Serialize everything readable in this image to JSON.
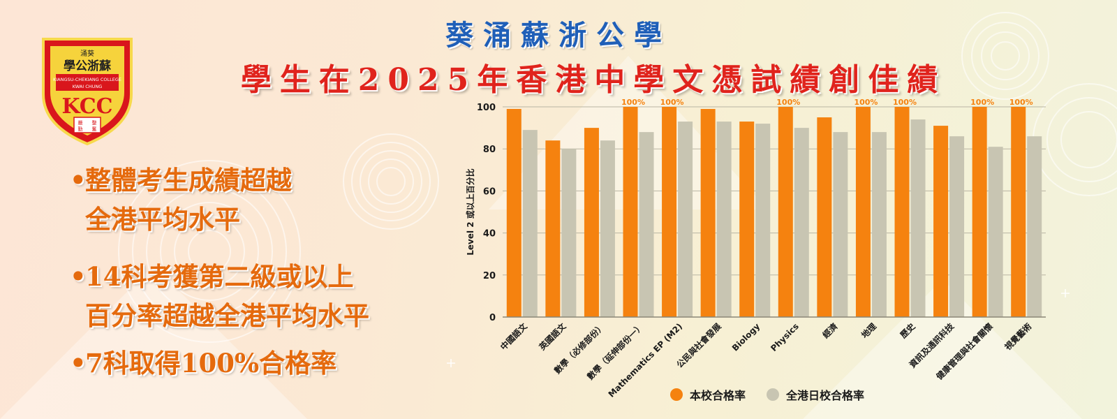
{
  "header": {
    "school_name": "葵涌蘇浙公學",
    "headline": "學生在2025年香港中學文憑試績創佳績"
  },
  "logo": {
    "top_text": "涌葵",
    "chinese_name": "學公浙蘇",
    "english_line1": "KIANGSU-CHEKIANG COLLEGE",
    "english_line2": "KWAI CHUNG",
    "initials": "KCC",
    "motto": [
      "嚴",
      "整",
      "勤",
      "奮"
    ]
  },
  "highlights": [
    {
      "lines": [
        "整體考生成績超越",
        "全港平均水平"
      ]
    },
    {
      "lines": [
        "14科考獲第二級或以上",
        "百分率超越全港平均水平"
      ]
    },
    {
      "lines": [
        "7科取得100%合格率"
      ]
    }
  ],
  "colors": {
    "school": "#f5820f",
    "hk": "#c8c5b2",
    "title_blue": "#1f5fb8",
    "title_red": "#e0231c",
    "bullet_orange": "#e56a0d"
  },
  "chart_data": {
    "type": "bar",
    "ylabel": "Level 2 或以上百分比",
    "ylim": [
      0,
      100
    ],
    "yticks": [
      0,
      20,
      40,
      60,
      80,
      100
    ],
    "grid": true,
    "legend_position": "bottom",
    "categories": [
      "中國語文",
      "英國語文",
      "數學（必修部份）",
      "數學（延伸部份一）",
      "Mathematics EP (M2)",
      "公民與社會發展",
      "Biology",
      "Physics",
      "經濟",
      "地理",
      "歷史",
      "資訊及通訊科技",
      "健康管理與社會關懷",
      "視覺藝術"
    ],
    "series": [
      {
        "name": "本校合格率",
        "values": [
          99,
          84,
          90,
          100,
          100,
          99,
          93,
          100,
          95,
          100,
          100,
          91,
          100,
          100
        ]
      },
      {
        "name": "全港日校合格率",
        "values": [
          89,
          80,
          84,
          88,
          93,
          93,
          92,
          90,
          88,
          88,
          94,
          86,
          81,
          86
        ]
      }
    ],
    "annotations": [
      "100%",
      "100%",
      "100%",
      "100%",
      "100%",
      "100%",
      "100%"
    ]
  }
}
